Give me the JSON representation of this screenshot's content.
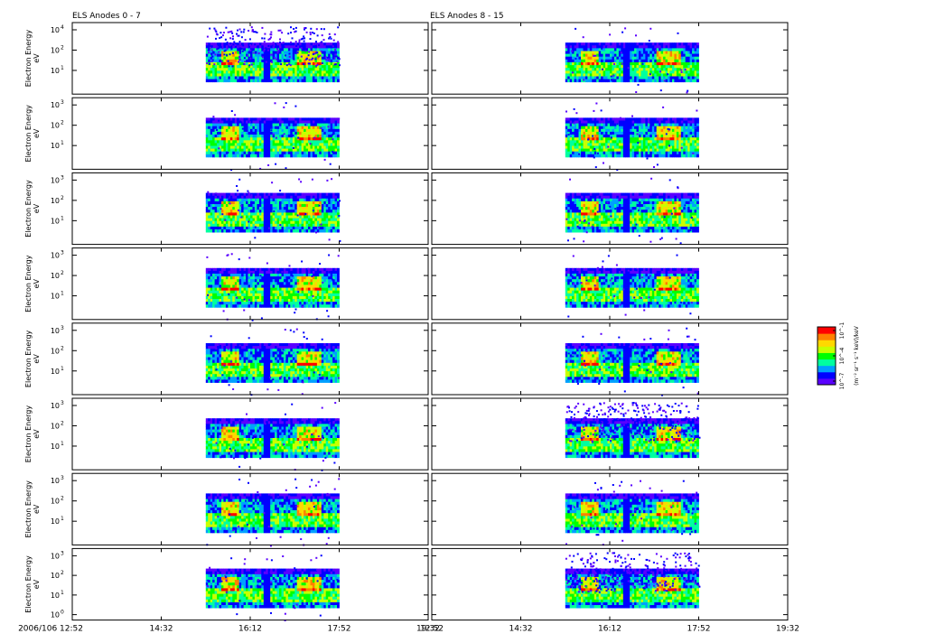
{
  "chart_data": {
    "type": "heatmap",
    "columns": [
      {
        "title": "ELS Anodes 0 - 7",
        "anodes": [
          0,
          1,
          2,
          3,
          4,
          5,
          6,
          7
        ],
        "xtick_labels": [
          "2006/106 12:52",
          "14:32",
          "16:12",
          "17:52",
          "19:32"
        ]
      },
      {
        "title": "ELS Anodes 8 - 15",
        "anodes": [
          8,
          9,
          10,
          11,
          12,
          13,
          14,
          15
        ],
        "xtick_labels": [
          "12:52",
          "14:32",
          "16:12",
          "17:52",
          "19:32"
        ]
      }
    ],
    "x_ticks": [
      "12:52",
      "14:32",
      "16:12",
      "17:52",
      "19:32"
    ],
    "x_range": [
      "12:52",
      "19:32"
    ],
    "data_coverage": [
      {
        "column": 0,
        "start": "15:22",
        "end": "17:52"
      },
      {
        "column": 1,
        "start": "15:22",
        "end": "17:52"
      }
    ],
    "ylabel_line1": "Electron Energy",
    "ylabel_line2": "eV",
    "y_scale": "log",
    "ytick_labels_top": [
      "10",
      "10",
      "10"
    ],
    "ytick_exponents_top": [
      "4",
      "2",
      "1"
    ],
    "ytick_labels": [
      "10",
      "10",
      "10"
    ],
    "ytick_exponents": [
      "3",
      "2",
      "1"
    ],
    "ytick_labels_bottom": [
      "10",
      "10",
      "10",
      "10"
    ],
    "ytick_exponents_bottom": [
      "3",
      "2",
      "1",
      "0"
    ],
    "colorbar": {
      "colors": [
        "#5a00ff",
        "#0000ff",
        "#00a0ff",
        "#00ffa0",
        "#00ff00",
        "#c8ff00",
        "#ffd800",
        "#ff8000",
        "#ff0000"
      ],
      "tick_labels": [
        "10",
        "10",
        "10"
      ],
      "tick_exponents": [
        "-1",
        "-4",
        "-7"
      ],
      "label": "(m⁻² sr⁻¹ s⁻¹ keV)/keV",
      "scale": "log"
    },
    "rows": 8
  }
}
